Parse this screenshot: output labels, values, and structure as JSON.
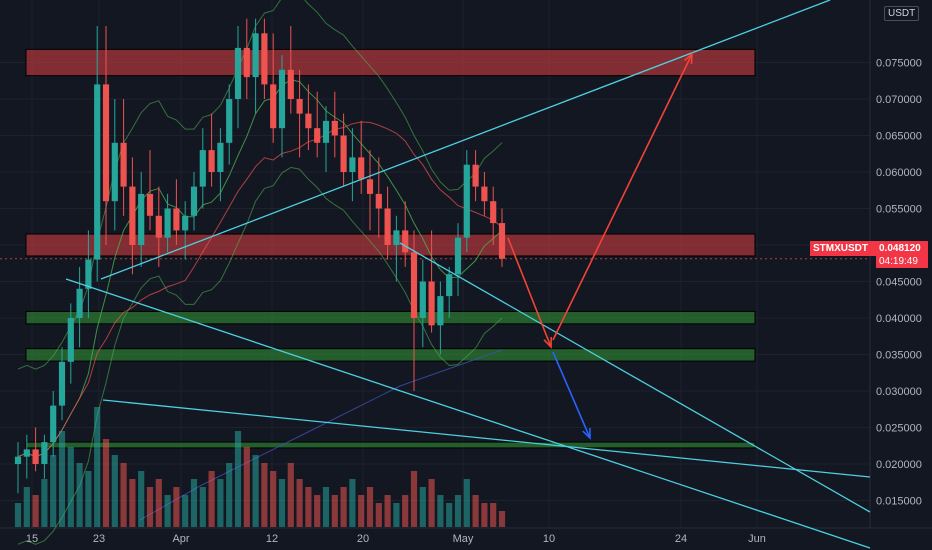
{
  "header": {
    "currency": "USDT"
  },
  "price_tag": {
    "symbol": "STMXUSDT",
    "price": "0.048120",
    "countdown": "04:19:49"
  },
  "colors": {
    "background": "#131722",
    "bull": "#26a69a",
    "bear": "#ef5350",
    "trendline": "#4dd0e1",
    "resistance_zone": "#b2383c",
    "support_zone": "#2e7d32",
    "bollinger": "#4caf50",
    "ma_red": "#ef5350",
    "ma_blue": "#3f51b5",
    "arrow_red": "#f44336",
    "arrow_blue": "#2962ff"
  },
  "chart_data": {
    "type": "candlestick",
    "symbol": "STMXUSDT",
    "x_axis_labels": [
      "15",
      "23",
      "Apr",
      "12",
      "20",
      "May",
      "10",
      "24",
      "Jun"
    ],
    "y_axis_labels": [
      "0.075000",
      "0.070000",
      "0.065000",
      "0.060000",
      "0.055000",
      "0.050000",
      "0.045000",
      "0.040000",
      "0.035000",
      "0.030000",
      "0.025000",
      "0.020000",
      "0.015000"
    ],
    "ylim": [
      0.0095,
      0.081
    ],
    "last_price": 0.04812,
    "zones": [
      {
        "kind": "resistance",
        "low": 0.0732,
        "high": 0.0768
      },
      {
        "kind": "resistance",
        "low": 0.0485,
        "high": 0.0515
      },
      {
        "kind": "support",
        "low": 0.0392,
        "high": 0.0409
      },
      {
        "kind": "support",
        "low": 0.0341,
        "high": 0.0358
      },
      {
        "kind": "support",
        "low": 0.0222,
        "high": 0.023
      }
    ],
    "candles": [
      [
        0.02,
        0.023,
        0.016,
        0.021
      ],
      [
        0.021,
        0.024,
        0.018,
        0.022
      ],
      [
        0.022,
        0.025,
        0.019,
        0.02
      ],
      [
        0.02,
        0.024,
        0.018,
        0.023
      ],
      [
        0.023,
        0.03,
        0.021,
        0.028
      ],
      [
        0.028,
        0.036,
        0.026,
        0.034
      ],
      [
        0.034,
        0.042,
        0.031,
        0.04
      ],
      [
        0.04,
        0.047,
        0.036,
        0.044
      ],
      [
        0.044,
        0.052,
        0.04,
        0.048
      ],
      [
        0.048,
        0.08,
        0.045,
        0.072
      ],
      [
        0.072,
        0.08,
        0.05,
        0.056
      ],
      [
        0.056,
        0.07,
        0.052,
        0.064
      ],
      [
        0.064,
        0.07,
        0.054,
        0.058
      ],
      [
        0.058,
        0.062,
        0.046,
        0.05
      ],
      [
        0.05,
        0.06,
        0.047,
        0.057
      ],
      [
        0.057,
        0.063,
        0.052,
        0.054
      ],
      [
        0.054,
        0.058,
        0.047,
        0.051
      ],
      [
        0.051,
        0.057,
        0.049,
        0.055
      ],
      [
        0.055,
        0.059,
        0.05,
        0.052
      ],
      [
        0.052,
        0.056,
        0.048,
        0.054
      ],
      [
        0.054,
        0.06,
        0.052,
        0.058
      ],
      [
        0.058,
        0.066,
        0.055,
        0.063
      ],
      [
        0.063,
        0.068,
        0.058,
        0.06
      ],
      [
        0.06,
        0.066,
        0.056,
        0.064
      ],
      [
        0.064,
        0.072,
        0.061,
        0.07
      ],
      [
        0.07,
        0.08,
        0.066,
        0.077
      ],
      [
        0.077,
        0.081,
        0.07,
        0.073
      ],
      [
        0.073,
        0.081,
        0.068,
        0.079
      ],
      [
        0.079,
        0.081,
        0.07,
        0.072
      ],
      [
        0.072,
        0.079,
        0.064,
        0.066
      ],
      [
        0.066,
        0.076,
        0.062,
        0.074
      ],
      [
        0.074,
        0.08,
        0.068,
        0.07
      ],
      [
        0.07,
        0.074,
        0.062,
        0.068
      ],
      [
        0.068,
        0.072,
        0.063,
        0.066
      ],
      [
        0.066,
        0.071,
        0.062,
        0.064
      ],
      [
        0.064,
        0.069,
        0.06,
        0.067
      ],
      [
        0.067,
        0.071,
        0.062,
        0.065
      ],
      [
        0.065,
        0.068,
        0.058,
        0.06
      ],
      [
        0.06,
        0.066,
        0.056,
        0.062
      ],
      [
        0.062,
        0.067,
        0.057,
        0.059
      ],
      [
        0.059,
        0.063,
        0.052,
        0.057
      ],
      [
        0.057,
        0.062,
        0.051,
        0.055
      ],
      [
        0.055,
        0.058,
        0.048,
        0.05
      ],
      [
        0.05,
        0.054,
        0.045,
        0.052
      ],
      [
        0.052,
        0.056,
        0.047,
        0.049
      ],
      [
        0.049,
        0.052,
        0.03,
        0.04
      ],
      [
        0.04,
        0.048,
        0.036,
        0.045
      ],
      [
        0.045,
        0.052,
        0.038,
        0.039
      ],
      [
        0.039,
        0.045,
        0.035,
        0.043
      ],
      [
        0.043,
        0.047,
        0.04,
        0.046
      ],
      [
        0.046,
        0.053,
        0.043,
        0.051
      ],
      [
        0.051,
        0.063,
        0.049,
        0.061
      ],
      [
        0.061,
        0.063,
        0.056,
        0.058
      ],
      [
        0.058,
        0.06,
        0.054,
        0.056
      ],
      [
        0.056,
        0.058,
        0.05,
        0.053
      ],
      [
        0.053,
        0.055,
        0.047,
        0.04812
      ]
    ],
    "volume": [
      3,
      5,
      4,
      6,
      9,
      12,
      10,
      8,
      7,
      15,
      11,
      9,
      8,
      6,
      7,
      5,
      6,
      4,
      5,
      4,
      6,
      5,
      7,
      6,
      8,
      12,
      10,
      9,
      8,
      7,
      6,
      8,
      6,
      5,
      4,
      5,
      4,
      5,
      6,
      4,
      5,
      3,
      4,
      3,
      4,
      7,
      5,
      6,
      4,
      3,
      4,
      6,
      4,
      3,
      3,
      2
    ],
    "indicators": [
      "Bollinger Bands",
      "Moving Average (red)",
      "Moving Average (blue)"
    ]
  }
}
